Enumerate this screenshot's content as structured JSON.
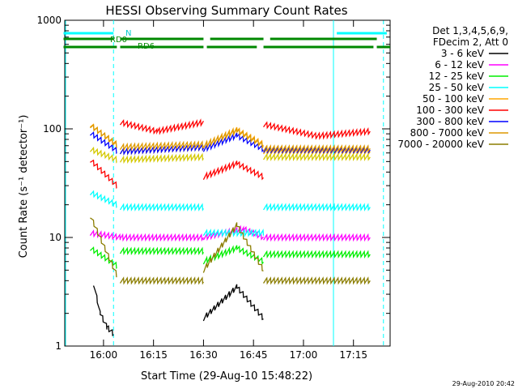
{
  "chart_data": {
    "type": "line",
    "title": "HESSI Observing Summary Count Rates",
    "xlabel": "Start Time (29-Aug-10 15:48:22)",
    "ylabel": "Count Rate (s⁻¹ detector⁻¹)",
    "ylog": true,
    "ylim": [
      1,
      1000
    ],
    "xlim": [
      "15:48:22",
      "17:26:00"
    ],
    "x_ticks": [
      "16:00",
      "16:15",
      "16:30",
      "16:45",
      "17:00",
      "17:15"
    ],
    "y_ticks": [
      "1",
      "10",
      "100",
      "1000"
    ],
    "footer": "29-Aug-2010 20:42",
    "legend": {
      "header1": "Det 1,3,4,5,6,9,",
      "header2": "FDecim 2, Att 0",
      "placement": "right"
    },
    "annotations": {
      "night": "N",
      "rd0": "RD0",
      "rd6": "RD6"
    },
    "night_intervals": [
      [
        "15:48",
        "16:03"
      ],
      [
        "17:10",
        "17:25"
      ]
    ],
    "rd0_intervals": [
      [
        "15:48",
        "16:03"
      ],
      [
        "16:05",
        "16:30"
      ],
      [
        "16:32",
        "16:48"
      ],
      [
        "16:50",
        "17:22"
      ]
    ],
    "rd6_intervals": [
      [
        "15:48",
        "16:04"
      ],
      [
        "16:05",
        "16:30"
      ],
      [
        "16:31",
        "16:46"
      ],
      [
        "16:48",
        "17:21"
      ],
      [
        "17:22",
        "17:26"
      ]
    ],
    "markers_solid": [
      "17:09"
    ],
    "markers_dashed": [
      "16:03",
      "17:24"
    ],
    "series": [
      {
        "name": "3 - 6 keV",
        "color": "#000000",
        "segments": [
          {
            "x": [
              "15:57",
              "15:59",
              "16:01",
              "16:03"
            ],
            "y": [
              3.8,
              2.0,
              1.5,
              1.3
            ]
          },
          {
            "x": [
              "16:30",
              "16:40",
              "16:48"
            ],
            "y": [
              1.8,
              3.5,
              1.8
            ]
          }
        ]
      },
      {
        "name": "6 - 12 keV",
        "color": "#ff00ff",
        "segments": [
          {
            "x": [
              "15:56",
              "16:05",
              "16:30"
            ],
            "y": [
              11,
              10,
              10
            ]
          },
          {
            "x": [
              "16:30",
              "16:42",
              "16:48"
            ],
            "y": [
              10,
              12,
              10
            ]
          },
          {
            "x": [
              "16:48",
              "17:20"
            ],
            "y": [
              10,
              10
            ]
          }
        ]
      },
      {
        "name": "12 - 25 keV",
        "color": "#00ee00",
        "segments": [
          {
            "x": [
              "15:56",
              "16:04"
            ],
            "y": [
              8,
              5.5
            ]
          },
          {
            "x": [
              "16:05",
              "16:30"
            ],
            "y": [
              7.5,
              7.5
            ]
          },
          {
            "x": [
              "16:30",
              "16:40",
              "16:48"
            ],
            "y": [
              6,
              8,
              6
            ]
          },
          {
            "x": [
              "16:48",
              "17:20"
            ],
            "y": [
              7,
              7
            ]
          }
        ]
      },
      {
        "name": "25 - 50 keV",
        "color": "#00ffff",
        "segments": [
          {
            "x": [
              "15:56",
              "16:04"
            ],
            "y": [
              26,
              20
            ]
          },
          {
            "x": [
              "16:05",
              "16:30"
            ],
            "y": [
              19,
              19
            ]
          },
          {
            "x": [
              "16:30",
              "16:48"
            ],
            "y": [
              11,
              11
            ]
          },
          {
            "x": [
              "16:48",
              "17:20"
            ],
            "y": [
              19,
              19
            ]
          }
        ]
      },
      {
        "name": "50 - 100 keV",
        "color": "#ffa500",
        "segments": [
          {
            "x": [
              "15:56",
              "16:04"
            ],
            "y": [
              110,
              70
            ]
          },
          {
            "x": [
              "16:05",
              "16:30"
            ],
            "y": [
              62,
              68
            ]
          },
          {
            "x": [
              "16:30",
              "16:40",
              "16:48"
            ],
            "y": [
              70,
              98,
              72
            ]
          },
          {
            "x": [
              "16:48",
              "17:20"
            ],
            "y": [
              62,
              62
            ]
          }
        ]
      },
      {
        "name": "100 - 300 keV",
        "color": "#ff0000",
        "segments": [
          {
            "x": [
              "15:56",
              "16:04"
            ],
            "y": [
              52,
              30
            ]
          },
          {
            "x": [
              "16:05",
              "16:16",
              "16:30"
            ],
            "y": [
              115,
              95,
              115
            ]
          },
          {
            "x": [
              "16:30",
              "16:40",
              "16:48"
            ],
            "y": [
              36,
              48,
              36
            ]
          },
          {
            "x": [
              "16:48",
              "17:04",
              "17:20"
            ],
            "y": [
              110,
              86,
              95
            ]
          }
        ]
      },
      {
        "name": "300 - 800 keV",
        "color": "#0000ff",
        "segments": [
          {
            "x": [
              "15:56",
              "16:04"
            ],
            "y": [
              92,
              63
            ]
          },
          {
            "x": [
              "16:05",
              "16:30"
            ],
            "y": [
              62,
              68
            ]
          },
          {
            "x": [
              "16:30",
              "16:40",
              "16:48"
            ],
            "y": [
              65,
              87,
              65
            ]
          },
          {
            "x": [
              "16:48",
              "17:20"
            ],
            "y": [
              64,
              64
            ]
          }
        ]
      },
      {
        "name": "800 - 7000 keV",
        "color": "#dd9900",
        "segments": [
          {
            "x": [
              "15:56",
              "16:04"
            ],
            "y": [
              108,
              72
            ]
          },
          {
            "x": [
              "16:05",
              "16:30"
            ],
            "y": [
              68,
              72
            ]
          },
          {
            "x": [
              "16:30",
              "16:40",
              "16:48"
            ],
            "y": [
              70,
              96,
              70
            ]
          },
          {
            "x": [
              "16:48",
              "17:20"
            ],
            "y": [
              66,
              66
            ]
          }
        ]
      },
      {
        "name": "7000 - 20000 keV",
        "color": "#8b7d00",
        "segments": [
          {
            "x": [
              "15:56",
              "16:04"
            ],
            "y": [
              16,
              4.5
            ]
          },
          {
            "x": [
              "16:05",
              "16:30"
            ],
            "y": [
              4,
              4
            ]
          },
          {
            "x": [
              "16:30",
              "16:40",
              "16:48"
            ],
            "y": [
              5,
              13,
              5
            ]
          },
          {
            "x": [
              "16:48",
              "17:20"
            ],
            "y": [
              4,
              4
            ]
          }
        ]
      }
    ],
    "yellow_50_100_override": {
      "name": "50 - 100 keV",
      "color": "#d4c800",
      "segments": [
        {
          "x": [
            "15:56",
            "16:04"
          ],
          "y": [
            65,
            52
          ]
        },
        {
          "x": [
            "16:05",
            "16:30"
          ],
          "y": [
            52,
            55
          ]
        },
        {
          "x": [
            "16:48",
            "17:20"
          ],
          "y": [
            55,
            55
          ]
        }
      ]
    }
  }
}
